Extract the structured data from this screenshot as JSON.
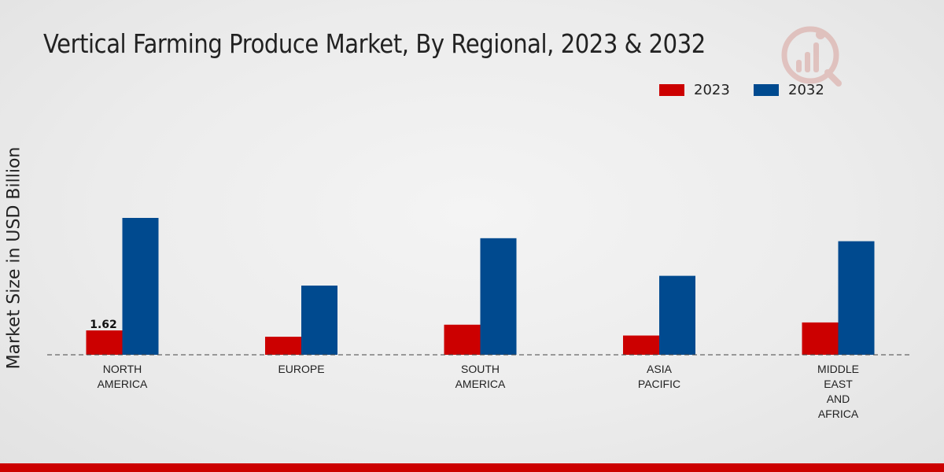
{
  "chart_data": {
    "type": "bar",
    "title": "Vertical Farming Produce Market, By Regional, 2023 & 2032",
    "xlabel": "",
    "ylabel": "Market Size in USD Billion",
    "categories": [
      [
        "NORTH",
        "AMERICA"
      ],
      [
        "EUROPE"
      ],
      [
        "SOUTH",
        "AMERICA"
      ],
      [
        "ASIA",
        "PACIFIC"
      ],
      [
        "MIDDLE",
        "EAST",
        "AND",
        "AFRICA"
      ]
    ],
    "series": [
      {
        "name": "2023",
        "color": "#cc0000",
        "values": [
          1.62,
          1.2,
          2.0,
          1.28,
          2.15
        ]
      },
      {
        "name": "2032",
        "color": "#004a8f",
        "values": [
          9.1,
          4.6,
          7.75,
          5.25,
          7.55
        ]
      }
    ],
    "data_labels": [
      {
        "series": 0,
        "index": 0,
        "text": "1.62"
      }
    ],
    "ylim": [
      0,
      12
    ],
    "grid": false,
    "legend_position": "top-right"
  },
  "legend": {
    "items": [
      {
        "label": "2023",
        "color": "#cc0000"
      },
      {
        "label": "2032",
        "color": "#004a8f"
      }
    ]
  },
  "logo": {
    "icon": "market-research-logo-icon"
  }
}
